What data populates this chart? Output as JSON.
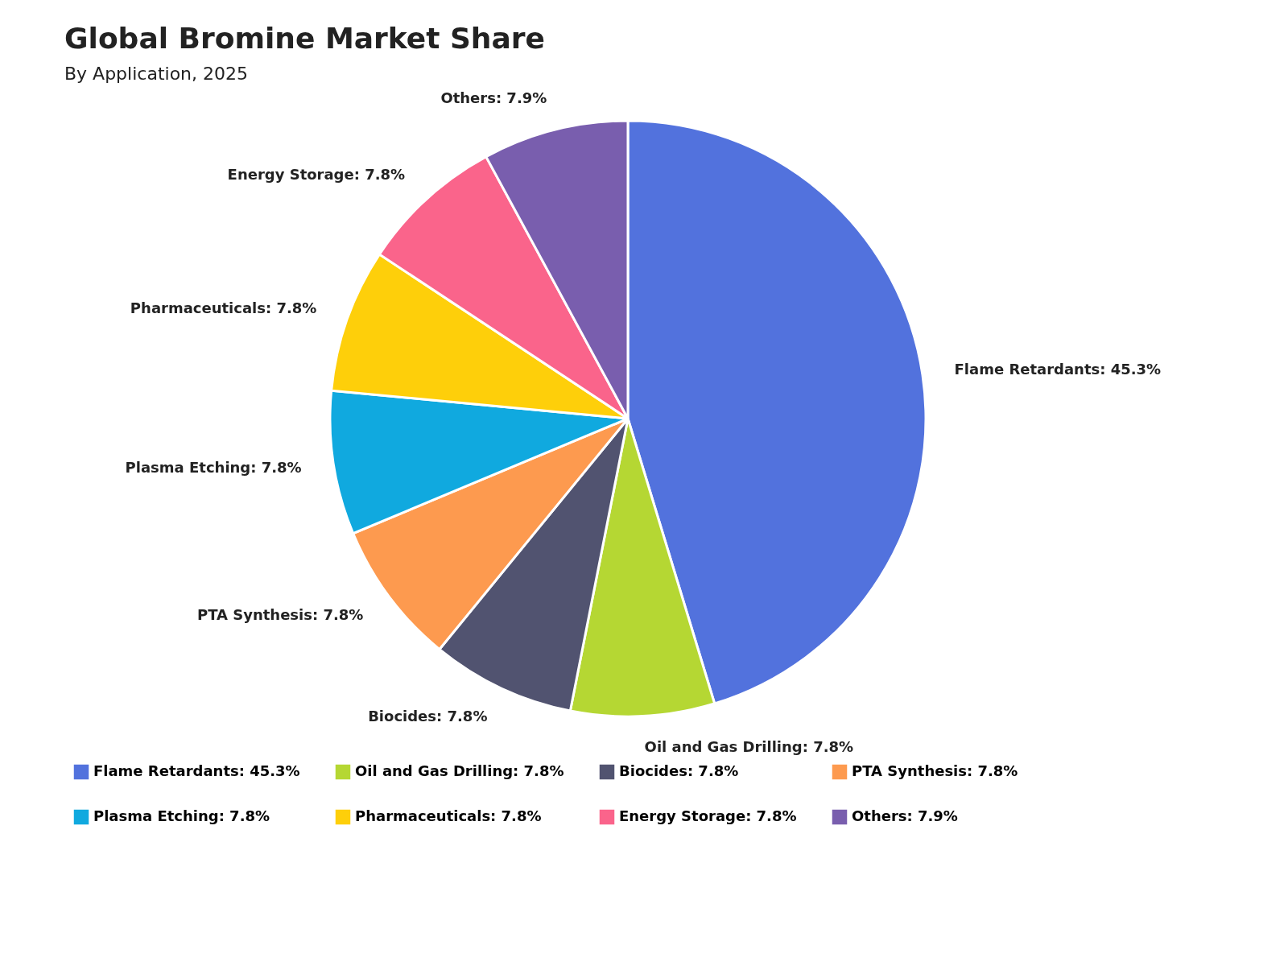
{
  "chart_data": {
    "type": "pie",
    "title": "Global Bromine Market Share",
    "subtitle": "By Application, 2025",
    "categories": [
      "Flame Retardants: 45.3%",
      "Oil and Gas Drilling: 7.8%",
      "Biocides: 7.8%",
      "PTA Synthesis: 7.8%",
      "Plasma Etching: 7.8%",
      "Pharmaceuticals: 7.8%",
      "Energy Storage: 7.8%",
      "Others: 7.9%"
    ],
    "values": [
      45.3,
      7.8,
      7.8,
      7.8,
      7.8,
      7.8,
      7.8,
      7.9
    ],
    "colors": [
      "#5272dd",
      "#b5d733",
      "#515370",
      "#fd9a4f",
      "#10a9df",
      "#fecf0a",
      "#fa648b",
      "#795eae"
    ],
    "legend": "bottom"
  }
}
